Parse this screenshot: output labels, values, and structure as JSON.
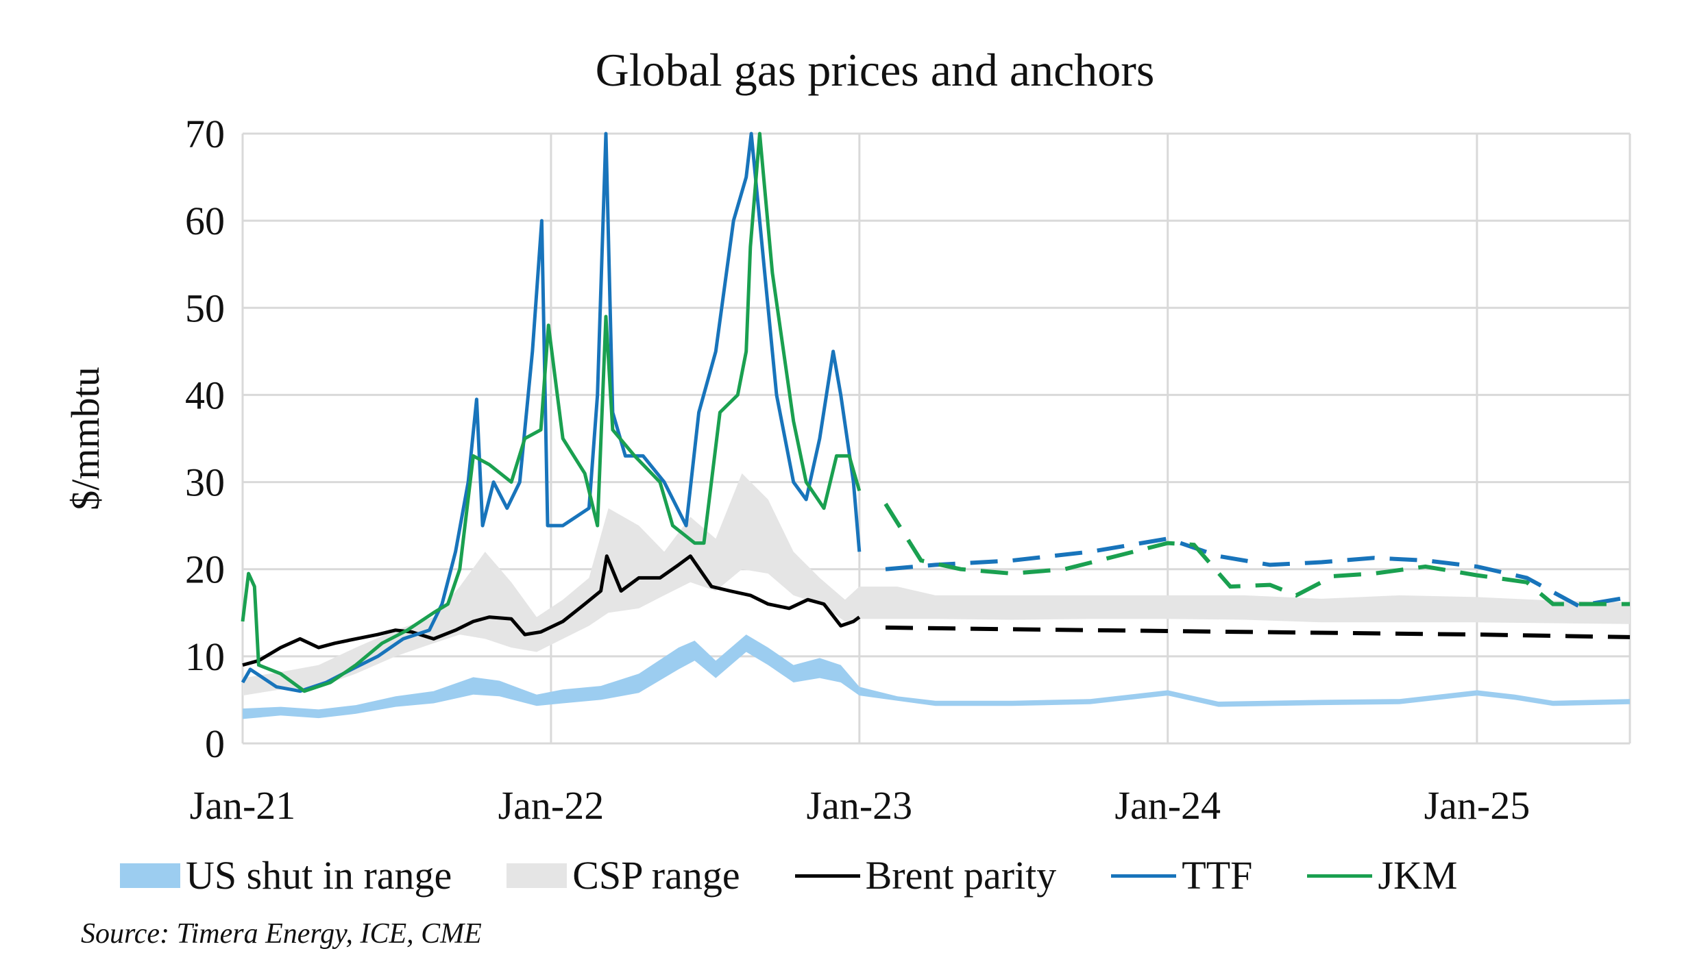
{
  "chart_data": {
    "type": "line",
    "title": "Global gas prices and anchors",
    "ylabel": "$/mmbtu",
    "xlabel": "",
    "ylim": [
      0,
      70
    ],
    "yticks": [
      "0",
      "10",
      "20",
      "30",
      "40",
      "50",
      "60",
      "70"
    ],
    "xlim": [
      "2021-01-01",
      "2025-07-01"
    ],
    "xticks": [
      {
        "date": "2021-01-01",
        "label": "Jan-21"
      },
      {
        "date": "2022-01-01",
        "label": "Jan-22"
      },
      {
        "date": "2023-01-01",
        "label": "Jan-23"
      },
      {
        "date": "2024-01-01",
        "label": "Jan-24"
      },
      {
        "date": "2025-01-01",
        "label": "Jan-25"
      }
    ],
    "grid": true,
    "legend_placement": "bottom",
    "source": "Source: Timera Energy, ICE, CME",
    "ranges": [
      {
        "name": "US shut in range",
        "color": "#9ccdf0",
        "x": [
          "2021-01-01",
          "2021-02-15",
          "2021-04-01",
          "2021-05-15",
          "2021-07-01",
          "2021-08-15",
          "2021-10-01",
          "2021-11-01",
          "2021-12-15",
          "2022-01-15",
          "2022-03-01",
          "2022-04-15",
          "2022-06-01",
          "2022-06-20",
          "2022-07-15",
          "2022-08-20",
          "2022-09-15",
          "2022-10-15",
          "2022-11-15",
          "2022-12-10",
          "2023-01-01",
          "2023-02-15",
          "2023-04-01",
          "2023-07-01",
          "2023-10-01",
          "2024-01-01",
          "2024-03-01",
          "2024-07-01",
          "2024-10-01",
          "2025-01-01",
          "2025-02-15",
          "2025-04-01",
          "2025-07-01"
        ],
        "low": [
          2.8,
          3.2,
          2.9,
          3.4,
          4.2,
          4.6,
          5.6,
          5.4,
          4.3,
          4.6,
          5.0,
          5.8,
          8.5,
          9.5,
          7.5,
          10.5,
          9.0,
          7.0,
          7.5,
          7.0,
          5.5,
          4.9,
          4.3,
          4.3,
          4.5,
          5.5,
          4.2,
          4.4,
          4.5,
          5.5,
          5.0,
          4.3,
          4.5
        ],
        "high": [
          4.0,
          4.2,
          3.9,
          4.4,
          5.4,
          6.0,
          7.6,
          7.2,
          5.6,
          6.2,
          6.6,
          8.0,
          11.0,
          11.8,
          9.5,
          12.5,
          11.0,
          9.0,
          9.8,
          9.0,
          6.5,
          5.4,
          4.9,
          4.9,
          5.1,
          6.1,
          4.8,
          5.0,
          5.1,
          6.1,
          5.6,
          4.9,
          5.1
        ]
      },
      {
        "name": "CSP range",
        "color": "#e5e5e5",
        "x": [
          "2021-01-01",
          "2021-02-15",
          "2021-04-01",
          "2021-05-15",
          "2021-07-01",
          "2021-08-15",
          "2021-09-15",
          "2021-10-15",
          "2021-11-15",
          "2021-12-15",
          "2022-01-15",
          "2022-02-15",
          "2022-03-10",
          "2022-04-15",
          "2022-05-15",
          "2022-06-15",
          "2022-07-15",
          "2022-08-15",
          "2022-09-15",
          "2022-10-15",
          "2022-11-15",
          "2022-12-15",
          "2023-01-01",
          "2023-02-15",
          "2023-04-01",
          "2023-07-01",
          "2023-10-01",
          "2024-01-01",
          "2024-04-01",
          "2024-07-01",
          "2024-10-01",
          "2025-01-01",
          "2025-04-01",
          "2025-07-01"
        ],
        "low": [
          5.5,
          6.2,
          6.5,
          8.0,
          10.0,
          11.5,
          12.5,
          12.0,
          11.0,
          10.5,
          12.0,
          13.5,
          15.0,
          15.5,
          17.0,
          18.5,
          17.5,
          20.0,
          19.5,
          17.0,
          16.0,
          14.0,
          14.3,
          14.3,
          14.3,
          14.2,
          14.3,
          14.3,
          14.2,
          13.9,
          13.9,
          13.9,
          13.8,
          13.7
        ],
        "high": [
          7.5,
          8.2,
          9.0,
          11.0,
          13.0,
          14.5,
          18.0,
          22.0,
          18.5,
          14.5,
          16.5,
          19.0,
          27.0,
          25.0,
          22.0,
          26.0,
          23.5,
          31.0,
          28.0,
          22.0,
          19.0,
          16.5,
          18.0,
          18.0,
          17.0,
          17.0,
          17.0,
          17.0,
          17.0,
          16.6,
          17.0,
          16.8,
          16.4,
          16.2
        ]
      }
    ],
    "series": [
      {
        "name": "Brent parity",
        "color": "#000000",
        "x": [
          "2021-01-01",
          "2021-01-20",
          "2021-02-15",
          "2021-03-10",
          "2021-04-01",
          "2021-04-20",
          "2021-05-15",
          "2021-06-10",
          "2021-07-01",
          "2021-07-20",
          "2021-08-15",
          "2021-09-10",
          "2021-10-01",
          "2021-10-20",
          "2021-11-15",
          "2021-12-01",
          "2021-12-20",
          "2022-01-15",
          "2022-02-10",
          "2022-03-01",
          "2022-03-08",
          "2022-03-25",
          "2022-04-15",
          "2022-05-10",
          "2022-06-01",
          "2022-06-15",
          "2022-07-10",
          "2022-08-01",
          "2022-08-25",
          "2022-09-15",
          "2022-10-10",
          "2022-11-01",
          "2022-11-20",
          "2022-12-10",
          "2022-12-25",
          "2023-01-01"
        ],
        "y": [
          9.0,
          9.5,
          11.0,
          12.0,
          11.0,
          11.5,
          12.0,
          12.5,
          13.0,
          12.8,
          12.0,
          13.0,
          14.0,
          14.5,
          14.3,
          12.5,
          12.8,
          14.0,
          16.0,
          17.5,
          21.5,
          17.5,
          19.0,
          19.0,
          20.5,
          21.5,
          18.0,
          17.5,
          17.0,
          16.0,
          15.5,
          16.5,
          16.0,
          13.5,
          14.0,
          14.5
        ],
        "forward_x": [
          "2023-02-01",
          "2023-07-01",
          "2024-01-01",
          "2024-07-01",
          "2025-01-01",
          "2025-07-01"
        ],
        "forward_y": [
          13.3,
          13.1,
          12.9,
          12.7,
          12.5,
          12.2
        ]
      },
      {
        "name": "TTF",
        "color": "#1874bb",
        "x": [
          "2021-01-01",
          "2021-01-10",
          "2021-02-10",
          "2021-03-10",
          "2021-04-10",
          "2021-05-10",
          "2021-06-10",
          "2021-07-10",
          "2021-08-10",
          "2021-08-25",
          "2021-09-10",
          "2021-09-25",
          "2021-10-05",
          "2021-10-12",
          "2021-10-25",
          "2021-11-10",
          "2021-11-25",
          "2021-12-10",
          "2021-12-21",
          "2021-12-28",
          "2022-01-15",
          "2022-02-15",
          "2022-02-25",
          "2022-03-07",
          "2022-03-15",
          "2022-03-30",
          "2022-04-20",
          "2022-05-15",
          "2022-06-10",
          "2022-06-25",
          "2022-07-15",
          "2022-08-05",
          "2022-08-20",
          "2022-08-26",
          "2022-09-10",
          "2022-09-25",
          "2022-10-15",
          "2022-10-30",
          "2022-11-15",
          "2022-12-01",
          "2022-12-10",
          "2022-12-25",
          "2023-01-01"
        ],
        "y": [
          7.0,
          8.5,
          6.5,
          6.0,
          7.0,
          8.5,
          10.0,
          12.0,
          13.0,
          16.0,
          22.0,
          30.0,
          39.5,
          25.0,
          30.0,
          27.0,
          30.0,
          45.0,
          60.0,
          25.0,
          25.0,
          27.0,
          40.0,
          70.0,
          38.0,
          33.0,
          33.0,
          30.0,
          25.0,
          38.0,
          45.0,
          60.0,
          65.0,
          70.0,
          55.0,
          40.0,
          30.0,
          28.0,
          35.0,
          45.0,
          40.0,
          30.0,
          22.0
        ],
        "forward_x": [
          "2023-02-01",
          "2023-04-01",
          "2023-07-01",
          "2023-10-01",
          "2024-01-01",
          "2024-03-01",
          "2024-05-01",
          "2024-07-01",
          "2024-09-01",
          "2024-11-01",
          "2025-01-01",
          "2025-03-01",
          "2025-05-01",
          "2025-07-01"
        ],
        "forward_y": [
          20.0,
          20.5,
          21.0,
          22.0,
          23.5,
          21.5,
          20.5,
          20.8,
          21.3,
          21.0,
          20.3,
          19.0,
          15.8,
          16.8
        ]
      },
      {
        "name": "JKM",
        "color": "#1aa050",
        "x": [
          "2021-01-01",
          "2021-01-08",
          "2021-01-15",
          "2021-01-20",
          "2021-02-15",
          "2021-03-15",
          "2021-04-15",
          "2021-05-15",
          "2021-06-15",
          "2021-07-15",
          "2021-08-15",
          "2021-09-01",
          "2021-09-15",
          "2021-10-01",
          "2021-10-20",
          "2021-11-15",
          "2021-12-01",
          "2021-12-20",
          "2021-12-29",
          "2022-01-15",
          "2022-02-10",
          "2022-02-25",
          "2022-03-07",
          "2022-03-15",
          "2022-04-10",
          "2022-05-10",
          "2022-05-25",
          "2022-06-20",
          "2022-07-01",
          "2022-07-20",
          "2022-08-10",
          "2022-08-20",
          "2022-08-25",
          "2022-09-05",
          "2022-09-20",
          "2022-10-15",
          "2022-10-30",
          "2022-11-20",
          "2022-12-05",
          "2022-12-20",
          "2023-01-01"
        ],
        "y": [
          14.0,
          19.5,
          18.0,
          9.0,
          8.0,
          6.0,
          7.0,
          9.0,
          11.5,
          13.0,
          15.0,
          16.0,
          20.0,
          33.0,
          32.0,
          30.0,
          35.0,
          36.0,
          48.0,
          35.0,
          31.0,
          25.0,
          49.0,
          36.0,
          33.0,
          30.0,
          25.0,
          23.0,
          23.0,
          38.0,
          40.0,
          45.0,
          57.0,
          70.0,
          54.0,
          37.0,
          30.0,
          27.0,
          33.0,
          33.0,
          29.0
        ],
        "forward_x": [
          "2023-02-01",
          "2023-03-15",
          "2023-05-01",
          "2023-07-01",
          "2023-09-01",
          "2023-11-01",
          "2024-01-01",
          "2024-02-01",
          "2024-03-15",
          "2024-05-01",
          "2024-06-01",
          "2024-07-15",
          "2024-09-01",
          "2024-11-01",
          "2025-01-01",
          "2025-03-01",
          "2025-04-01",
          "2025-05-01",
          "2025-07-01"
        ],
        "forward_y": [
          27.5,
          21.0,
          20.0,
          19.5,
          20.0,
          21.5,
          23.0,
          22.8,
          18.0,
          18.2,
          17.0,
          19.2,
          19.5,
          20.3,
          19.3,
          18.5,
          16.0,
          16.0,
          16.0
        ]
      }
    ]
  }
}
